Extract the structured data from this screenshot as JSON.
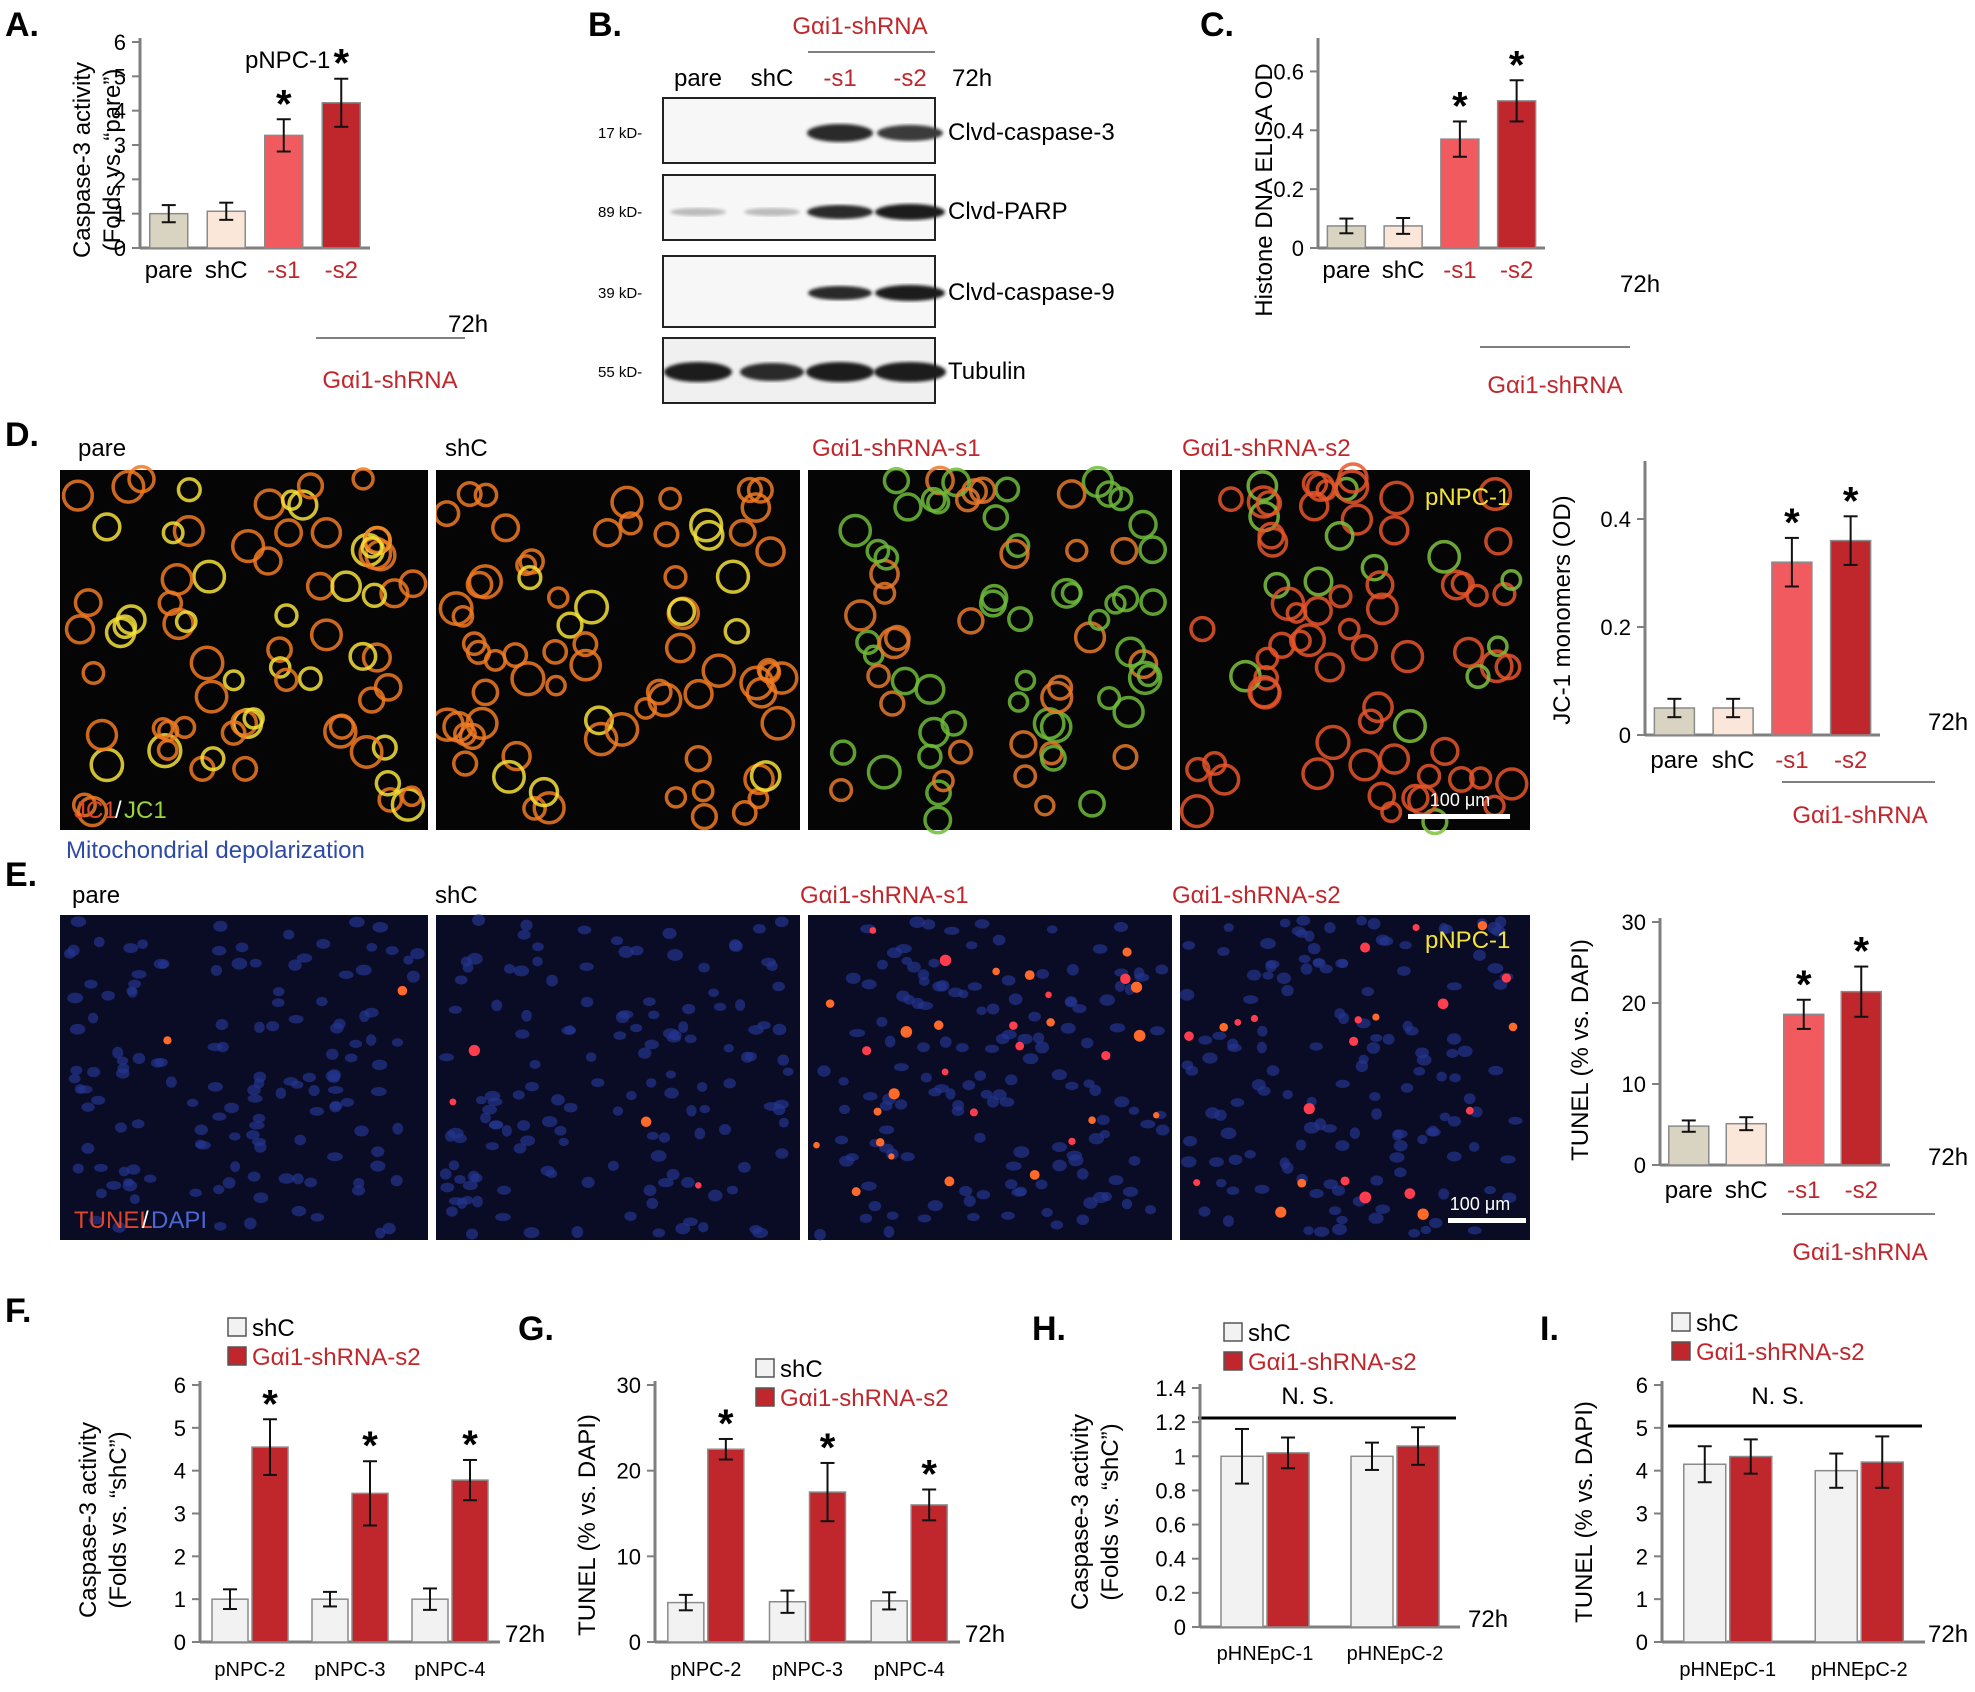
{
  "colors": {
    "pare": "#d9d4c2",
    "shC": "#fbe6da",
    "s1": "#f15a5e",
    "s2": "#c0272d",
    "shC_light": "#f2f2f2",
    "accent_red": "#c0272d",
    "yellow": "#f2e33a",
    "blue": "#2e4aa8"
  },
  "panels": {
    "A": {
      "letter": "A.",
      "subtitle": "pNPC-1",
      "ylabel1": "Caspase-3 activity",
      "ylabel2": "(Folds vs. “pare”)",
      "time": "72h",
      "group": "Gαi1-shRNA"
    },
    "B": {
      "letter": "B.",
      "group": "Gαi1-shRNA",
      "time": "72h",
      "lanes": [
        "pare",
        "shC",
        "-s1",
        "-s2"
      ],
      "bands": [
        {
          "kd": "17 kD-",
          "name": "Clvd-caspase-3"
        },
        {
          "kd": "89 kD-",
          "name": "Clvd-PARP"
        },
        {
          "kd": "39 kD-",
          "name": "Clvd-caspase-9"
        },
        {
          "kd": "55 kD-",
          "name": "Tubulin"
        }
      ]
    },
    "C": {
      "letter": "C.",
      "ylabel": "Histone DNA ELISA OD",
      "time": "72h",
      "group": "Gαi1-shRNA"
    },
    "D": {
      "letter": "D.",
      "images": [
        "pare",
        "shC",
        "Gαi1-shRNA-s1",
        "Gαi1-shRNA-s2"
      ],
      "cell": "pNPC-1",
      "stain_a": "JC1",
      "stain_sep": "/",
      "stain_b": "JC1",
      "caption": "Mitochondrial depolarization",
      "scale": "100 μm",
      "ylabel": "JC-1 monomers (OD)",
      "time": "72h",
      "group": "Gαi1-shRNA"
    },
    "E": {
      "letter": "E.",
      "images": [
        "pare",
        "shC",
        "Gαi1-shRNA-s1",
        "Gαi1-shRNA-s2"
      ],
      "cell": "pNPC-1",
      "stain_a": "TUNEL",
      "stain_sep": "/",
      "stain_b": "DAPI",
      "scale": "100 μm",
      "ylabel": "TUNEL (% vs. DAPI)",
      "time": "72h",
      "group": "Gαi1-shRNA"
    },
    "F": {
      "letter": "F.",
      "ylabel1": "Caspase-3 activity",
      "ylabel2": "(Folds vs. “shC”)",
      "time": "72h",
      "legend": [
        "shC",
        "Gαi1-shRNA-s2"
      ]
    },
    "G": {
      "letter": "G.",
      "ylabel": "TUNEL (% vs. DAPI)",
      "time": "72h",
      "legend": [
        "shC",
        "Gαi1-shRNA-s2"
      ]
    },
    "H": {
      "letter": "H.",
      "ylabel1": "Caspase-3 activity",
      "ylabel2": "(Folds vs. “shC”)",
      "time": "72h",
      "legend": [
        "shC",
        "Gαi1-shRNA-s2"
      ],
      "ns": "N. S."
    },
    "I": {
      "letter": "I.",
      "ylabel": "TUNEL (% vs. DAPI)",
      "time": "72h",
      "legend": [
        "shC",
        "Gαi1-shRNA-s2"
      ],
      "ns": "N. S."
    }
  },
  "chart_data": [
    {
      "panel": "A",
      "type": "bar",
      "categories": [
        "pare",
        "shC",
        "-s1",
        "-s2"
      ],
      "values": [
        1.0,
        1.07,
        3.28,
        4.23
      ],
      "errors": [
        0.25,
        0.25,
        0.47,
        0.7
      ],
      "significant": [
        false,
        false,
        true,
        true
      ],
      "ylim": [
        0,
        6
      ],
      "yticks": [
        "0",
        "1",
        "2",
        "3",
        "4",
        "5",
        "6"
      ],
      "ylabel": "Caspase-3 activity (Folds vs. “pare”)"
    },
    {
      "panel": "C",
      "type": "bar",
      "categories": [
        "pare",
        "shC",
        "-s1",
        "-s2"
      ],
      "values": [
        0.075,
        0.075,
        0.37,
        0.5
      ],
      "errors": [
        0.025,
        0.027,
        0.06,
        0.07
      ],
      "significant": [
        false,
        false,
        true,
        true
      ],
      "ylim": [
        0,
        0.7
      ],
      "yticks": [
        "0",
        "0.2",
        "0.4",
        "0.6"
      ],
      "ylabel": "Histone DNA ELISA OD"
    },
    {
      "panel": "D",
      "type": "bar",
      "categories": [
        "pare",
        "shC",
        "-s1",
        "-s2"
      ],
      "values": [
        0.05,
        0.05,
        0.32,
        0.36
      ],
      "errors": [
        0.017,
        0.017,
        0.045,
        0.045
      ],
      "significant": [
        false,
        false,
        true,
        true
      ],
      "ylim": [
        0,
        0.5
      ],
      "yticks": [
        "0",
        "0.2",
        "0.4"
      ],
      "ylabel": "JC-1 monomers (OD)"
    },
    {
      "panel": "E",
      "type": "bar",
      "categories": [
        "pare",
        "shC",
        "-s1",
        "-s2"
      ],
      "values": [
        4.8,
        5.1,
        18.6,
        21.4
      ],
      "errors": [
        0.7,
        0.8,
        1.8,
        3.1
      ],
      "significant": [
        false,
        false,
        true,
        true
      ],
      "ylim": [
        0,
        30
      ],
      "yticks": [
        "0",
        "10",
        "20",
        "30"
      ],
      "ylabel": "TUNEL (% vs. DAPI)"
    },
    {
      "panel": "F",
      "type": "bar",
      "categories": [
        "pNPC-2",
        "pNPC-3",
        "pNPC-4"
      ],
      "series": [
        {
          "name": "shC",
          "values": [
            1.0,
            1.0,
            1.0
          ],
          "errors": [
            0.23,
            0.17,
            0.25
          ]
        },
        {
          "name": "Gαi1-shRNA-s2",
          "values": [
            4.55,
            3.47,
            3.78
          ],
          "errors": [
            0.65,
            0.75,
            0.47
          ]
        }
      ],
      "significant": [
        true,
        true,
        true
      ],
      "ylim": [
        0,
        6
      ],
      "yticks": [
        "0",
        "1",
        "2",
        "3",
        "4",
        "5",
        "6"
      ],
      "ylabel": "Caspase-3 activity (Folds vs. “shC”)"
    },
    {
      "panel": "G",
      "type": "bar",
      "categories": [
        "pNPC-2",
        "pNPC-3",
        "pNPC-4"
      ],
      "series": [
        {
          "name": "shC",
          "values": [
            4.6,
            4.7,
            4.8
          ],
          "errors": [
            0.9,
            1.3,
            1.0
          ]
        },
        {
          "name": "Gαi1-shRNA-s2",
          "values": [
            22.5,
            17.5,
            16.0
          ],
          "errors": [
            1.2,
            3.4,
            1.8
          ]
        }
      ],
      "significant": [
        true,
        true,
        true
      ],
      "ylim": [
        0,
        30
      ],
      "yticks": [
        "0",
        "10",
        "20",
        "30"
      ],
      "ylabel": "TUNEL (% vs. DAPI)"
    },
    {
      "panel": "H",
      "type": "bar",
      "categories": [
        "pHNEpC-1",
        "pHNEpC-2"
      ],
      "series": [
        {
          "name": "shC",
          "values": [
            1.0,
            1.0
          ],
          "errors": [
            0.16,
            0.08
          ]
        },
        {
          "name": "Gαi1-shRNA-s2",
          "values": [
            1.02,
            1.06
          ],
          "errors": [
            0.09,
            0.11
          ]
        }
      ],
      "significant": [
        false,
        false
      ],
      "ylim": [
        0,
        1.4
      ],
      "yticks": [
        "0",
        "0.2",
        "0.4",
        "0.6",
        "0.8",
        "1",
        "1.2",
        "1.4"
      ],
      "ylabel": "Caspase-3 activity (Folds vs. “shC”)"
    },
    {
      "panel": "I",
      "type": "bar",
      "categories": [
        "pHNEpC-1",
        "pHNEpC-2"
      ],
      "series": [
        {
          "name": "shC",
          "values": [
            4.15,
            4.0
          ],
          "errors": [
            0.42,
            0.4
          ]
        },
        {
          "name": "Gαi1-shRNA-s2",
          "values": [
            4.33,
            4.2
          ],
          "errors": [
            0.4,
            0.6
          ]
        }
      ],
      "significant": [
        false,
        false
      ],
      "ylim": [
        0,
        6
      ],
      "yticks": [
        "0",
        "1",
        "2",
        "3",
        "4",
        "5",
        "6"
      ],
      "ylabel": "TUNEL (% vs. DAPI)"
    }
  ]
}
